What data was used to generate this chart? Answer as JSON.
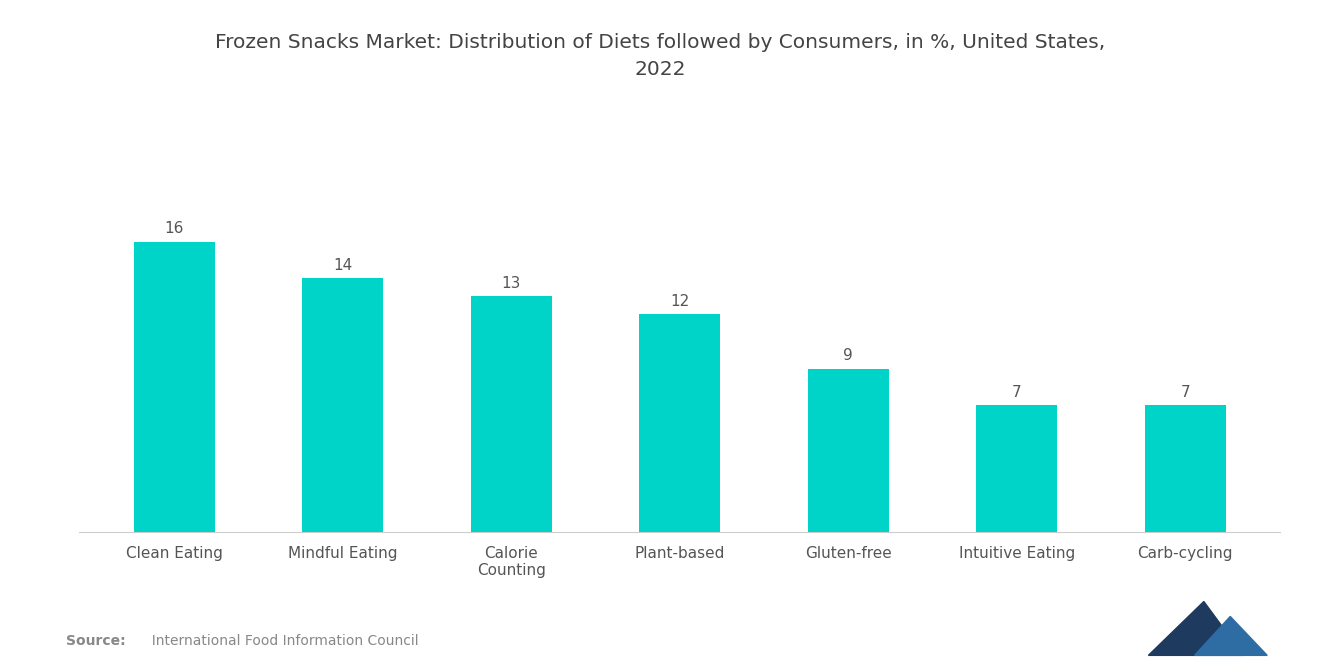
{
  "title": "Frozen Snacks Market: Distribution of Diets followed by Consumers, in %, United States,\n2022",
  "categories": [
    "Clean Eating",
    "Mindful Eating",
    "Calorie\nCounting",
    "Plant-based",
    "Gluten-free",
    "Intuitive Eating",
    "Carb-cycling"
  ],
  "values": [
    16,
    14,
    13,
    12,
    9,
    7,
    7
  ],
  "bar_color": "#00D4C8",
  "background_color": "#ffffff",
  "title_fontsize": 14.5,
  "label_fontsize": 11,
  "value_fontsize": 11,
  "source_bold": "Source:",
  "source_normal": "  International Food Information Council",
  "source_color": "#888888",
  "ylim": [
    0,
    22
  ],
  "bar_width": 0.48,
  "logo_color1": "#1e3a5f",
  "logo_color2": "#2e6da4"
}
